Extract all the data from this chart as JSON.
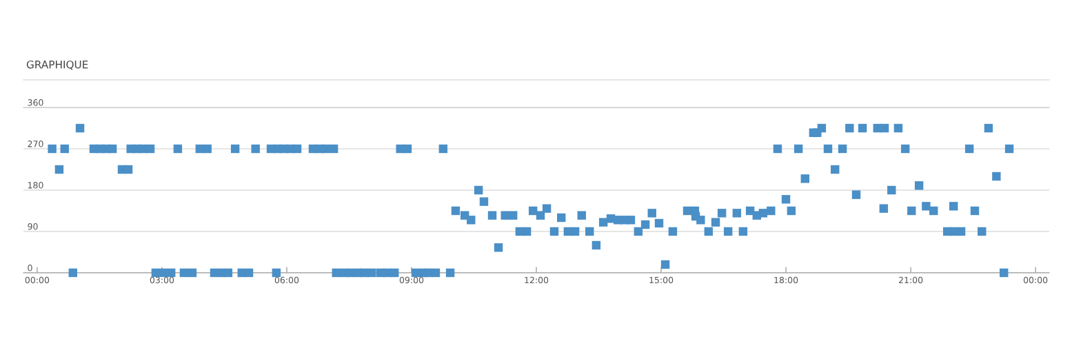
{
  "chart_data": {
    "type": "scatter",
    "title": "GRAPHIQUE",
    "x": [
      0.36,
      0.53,
      0.66,
      0.86,
      1.03,
      1.36,
      1.51,
      1.66,
      1.81,
      2.04,
      2.19,
      2.25,
      2.4,
      2.55,
      2.72,
      2.85,
      3.03,
      3.22,
      3.38,
      3.53,
      3.73,
      3.91,
      4.09,
      4.26,
      4.43,
      4.59,
      4.76,
      4.92,
      5.09,
      5.25,
      5.62,
      5.75,
      5.78,
      5.93,
      6.09,
      6.25,
      6.63,
      6.8,
      6.94,
      7.13,
      7.19,
      7.38,
      7.54,
      7.71,
      7.87,
      8.04,
      8.25,
      8.42,
      8.59,
      8.73,
      8.9,
      9.1,
      9.27,
      9.41,
      9.58,
      9.76,
      9.93,
      10.06,
      10.28,
      10.43,
      10.61,
      10.74,
      10.94,
      11.09,
      11.25,
      11.44,
      11.6,
      11.77,
      11.92,
      12.1,
      12.25,
      12.43,
      12.6,
      12.76,
      12.93,
      13.09,
      13.28,
      13.44,
      13.61,
      13.79,
      13.96,
      14.12,
      14.27,
      14.45,
      14.62,
      14.78,
      14.95,
      15.1,
      15.28,
      15.63,
      15.81,
      15.83,
      15.95,
      16.14,
      16.31,
      16.46,
      16.61,
      16.82,
      16.97,
      17.14,
      17.3,
      17.45,
      17.64,
      17.8,
      18.0,
      18.13,
      18.3,
      18.46,
      18.66,
      18.75,
      18.86,
      19.01,
      19.18,
      19.36,
      19.53,
      19.69,
      19.84,
      20.2,
      20.35,
      20.37,
      20.54,
      20.7,
      20.87,
      21.02,
      21.2,
      21.37,
      21.55,
      21.88,
      22.03,
      22.04,
      22.21,
      22.41,
      22.54,
      22.71,
      22.87,
      23.06,
      23.24,
      23.37
    ],
    "series": [
      {
        "color": "#4b8fc7",
        "values": [
          270,
          225,
          270,
          0,
          315,
          270,
          270,
          270,
          270,
          225,
          225,
          270,
          270,
          270,
          270,
          0,
          0,
          0,
          270,
          0,
          0,
          270,
          270,
          0,
          0,
          0,
          270,
          0,
          0,
          270,
          270,
          0,
          270,
          270,
          270,
          270,
          270,
          270,
          270,
          270,
          0,
          0,
          0,
          0,
          0,
          0,
          0,
          0,
          0,
          270,
          270,
          0,
          0,
          0,
          0,
          270,
          0,
          135,
          125,
          115,
          180,
          155,
          125,
          55,
          125,
          125,
          90,
          90,
          135,
          125,
          140,
          90,
          120,
          90,
          90,
          125,
          90,
          60,
          110,
          118,
          115,
          115,
          115,
          90,
          105,
          130,
          108,
          18,
          90,
          135,
          135,
          123,
          115,
          90,
          110,
          130,
          90,
          130,
          90,
          135,
          125,
          130,
          135,
          270,
          160,
          135,
          270,
          205,
          305,
          305,
          315,
          270,
          225,
          270,
          315,
          170,
          315,
          315,
          140,
          315,
          180,
          315,
          270,
          135,
          190,
          145,
          135,
          90,
          145,
          90,
          90,
          270,
          135,
          90,
          315,
          210,
          0,
          270
        ]
      }
    ],
    "xlim": [
      -0.33,
      24.33
    ],
    "ylim": [
      0,
      360
    ],
    "xticks": [
      {
        "value": 0,
        "label": "00:00"
      },
      {
        "value": 3,
        "label": "03:00"
      },
      {
        "value": 6,
        "label": "06:00"
      },
      {
        "value": 9,
        "label": "09:00"
      },
      {
        "value": 12,
        "label": "12:00"
      },
      {
        "value": 15,
        "label": "15:00"
      },
      {
        "value": 18,
        "label": "18:00"
      },
      {
        "value": 21,
        "label": "21:00"
      },
      {
        "value": 24,
        "label": "00:00"
      }
    ],
    "yticks": [
      0,
      90,
      180,
      270,
      360
    ],
    "grid": "y",
    "marker": "square"
  }
}
